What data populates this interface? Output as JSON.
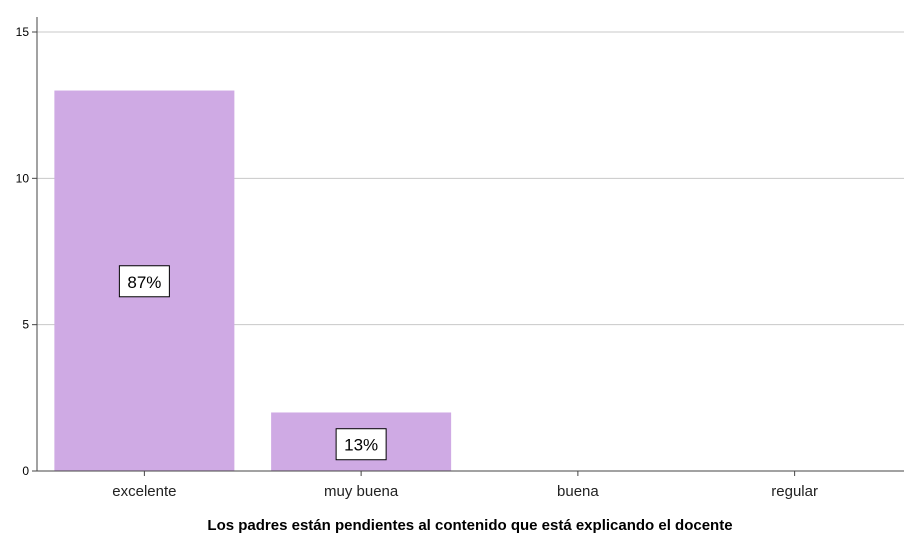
{
  "chart_data": {
    "type": "bar",
    "categories": [
      "excelente",
      "muy buena",
      "buena",
      "regular"
    ],
    "values": [
      13,
      2,
      0,
      0
    ],
    "data_labels": [
      "87%",
      "13%",
      "",
      ""
    ],
    "title": "",
    "xlabel": "Los padres están pendientes al contenido que está explicando el docente",
    "ylabel": "",
    "ylim": [
      0,
      15
    ],
    "yticks": [
      0,
      5,
      10,
      15
    ],
    "grid": true,
    "bar_color": "#cfaae4"
  }
}
